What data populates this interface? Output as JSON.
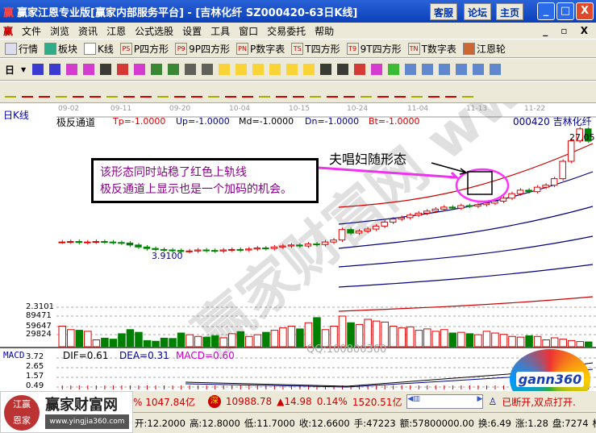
{
  "window": {
    "title": "赢家江恩专业版[赢家内部服务平台] - [吉林化纤   SZ000420-63日K线]",
    "buttons": [
      "客服",
      "论坛",
      "主页"
    ]
  },
  "menu": [
    "文件",
    "浏览",
    "资讯",
    "江恩",
    "公式选股",
    "设置",
    "工具",
    "窗口",
    "交易委托",
    "帮助"
  ],
  "toolbar1": [
    {
      "icon": "table-icon",
      "label": "行情"
    },
    {
      "icon": "blocks-icon",
      "label": "板块"
    },
    {
      "icon": "kline-icon",
      "label": "K线"
    },
    {
      "icon": "PS",
      "label": "P四方形"
    },
    {
      "icon": "P9",
      "label": "9P四方形"
    },
    {
      "icon": "PN",
      "label": "P数字表"
    },
    {
      "icon": "TS",
      "label": "T四方形"
    },
    {
      "icon": "T9",
      "label": "9T四方形"
    },
    {
      "icon": "TN",
      "label": "T数字表"
    },
    {
      "icon": "wheel-icon",
      "label": "江恩轮"
    }
  ],
  "toolbar2": {
    "period": "日"
  },
  "chart": {
    "period_label": "日K线",
    "dates": [
      "09-02",
      "09-11",
      "09-20",
      "10-04",
      "10-15",
      "10-24",
      "11-04",
      "11-13",
      "11-22"
    ],
    "indicator": {
      "name": "极反通道",
      "tp": "Tp=-1.0000",
      "up": "Up=-1.0000",
      "md": "Md=-1.0000",
      "dn": "Dn=-1.0000",
      "bt": "Bt=-1.0000"
    },
    "stock": "000420  吉林化纤",
    "last_price_label": "27.05",
    "low_label": "3.9100",
    "annotation_box": [
      "该形态同时站稳了红色上轨线",
      "极反通道上显示也是一个加码的机会。"
    ],
    "pattern_label": "夫唱妇随形态",
    "watermark": "赢家财富网 www.yingjia360.com",
    "qq": "QQ:100800360",
    "volume_axis": [
      "2.3101",
      "89471",
      "59647",
      "29824"
    ],
    "macd": {
      "name": "MACD",
      "dif": "DIF=0.61",
      "dea": "DEA=0.31",
      "macd": "MACD=0.60",
      "axis": [
        "3.72",
        "2.65",
        "1.57",
        "0.49"
      ]
    },
    "colors": {
      "up": "#e00000",
      "down": "#008000",
      "upper_rail": "#cc0000",
      "channel": "#000080",
      "highlight": "#ff33ff"
    }
  },
  "chart_data": {
    "type": "candlestick",
    "closes": [
      6.8,
      6.9,
      6.7,
      6.8,
      6.9,
      6.8,
      6.7,
      6.6,
      6.2,
      5.8,
      5.5,
      5.3,
      5.2,
      5.1,
      4.9,
      5.0,
      5.2,
      5.1,
      5.0,
      5.2,
      5.3,
      5.2,
      5.4,
      5.6,
      5.5,
      5.8,
      6.0,
      6.2,
      6.0,
      6.4,
      6.3,
      6.8,
      7.2,
      9.3,
      8.6,
      9.0,
      9.4,
      10.0,
      10.8,
      11.4,
      11.7,
      12.2,
      12.6,
      13.0,
      13.4,
      13.8,
      13.6,
      14.1,
      14.0,
      14.3,
      14.6,
      15.0,
      15.6,
      16.5,
      17.2,
      16.9,
      17.8,
      18.2,
      19.5,
      23.0,
      27.1,
      29.5,
      27.05
    ],
    "volumes": [
      60000,
      50000,
      48000,
      45000,
      20000,
      25000,
      22000,
      38000,
      50000,
      42000,
      18000,
      16000,
      25000,
      24000,
      40000,
      35000,
      30000,
      28000,
      32000,
      26000,
      38000,
      44000,
      30000,
      35000,
      42000,
      48000,
      55000,
      60000,
      52000,
      70000,
      85000,
      50000,
      60000,
      89471,
      70000,
      65000,
      80000,
      75000,
      72000,
      60000,
      55000,
      58000,
      48000,
      52000,
      45000,
      50000,
      40000,
      42000,
      38000,
      35000,
      45000,
      40000,
      36000,
      30000,
      28000,
      32000,
      30000,
      20000,
      26000,
      22000,
      18000,
      15000,
      14000
    ]
  },
  "status": {
    "index_tail": "% 1047.84亿",
    "sz_label": "深",
    "sz_index": "10988.78",
    "sz_change": "▲14.98",
    "sz_pct": "0.14%",
    "sz_amount": "1520.51亿",
    "conn": "已断开,双点打开."
  },
  "info": [
    "开:12.2000",
    "高:12.8000",
    "低:11.7000",
    "收:12.6600",
    "手:47223",
    "额:57800000.00",
    "换:6.49",
    "涨:1.28",
    "盘:7274",
    "标"
  ],
  "logo": {
    "name": "赢家财富网",
    "url": "www.yingjia360.com",
    "seal": "江赢恩家",
    "gann": "gann360"
  }
}
